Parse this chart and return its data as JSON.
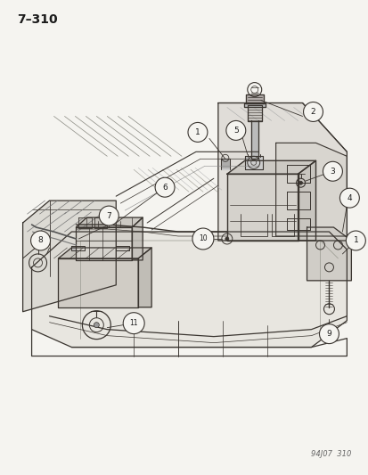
{
  "page_ref": "7–310",
  "footer_ref": "94J07  310",
  "bg_color": "#f5f4f0",
  "line_color": "#3a3530",
  "label_color": "#1a1a1a",
  "fig_width": 4.14,
  "fig_height": 5.33,
  "dpi": 100
}
